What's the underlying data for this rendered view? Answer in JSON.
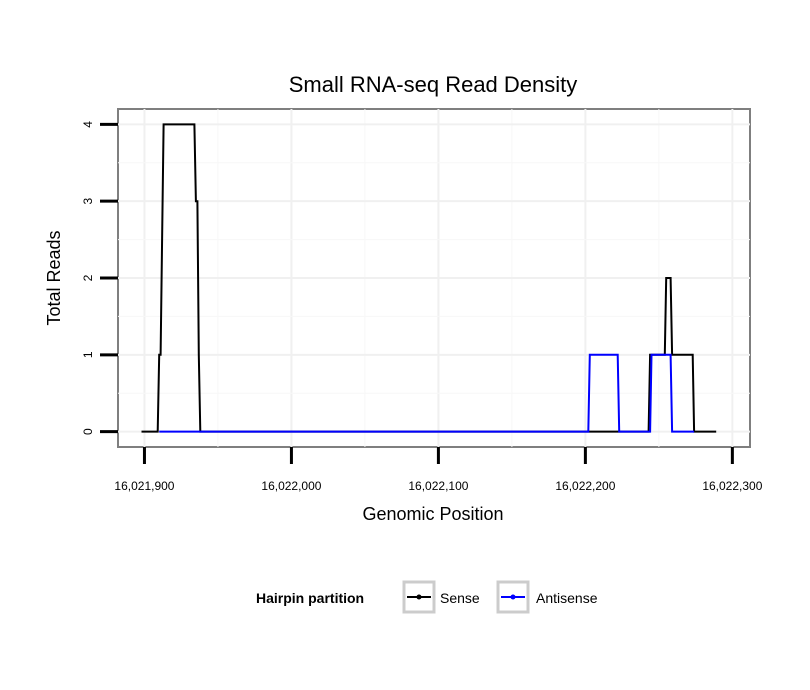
{
  "chart_data": {
    "type": "line",
    "title": "Small RNA-seq Read Density",
    "xlabel": "Genomic Position",
    "ylabel": "Total Reads",
    "xlim": [
      16021882,
      16022312
    ],
    "ylim": [
      -0.2,
      4.2
    ],
    "x_ticks": [
      16021900,
      16022000,
      16022100,
      16022200,
      16022300
    ],
    "x_tick_labels": [
      "16,021,900",
      "16,022,000",
      "16,022,100",
      "16,022,200",
      "16,022,300"
    ],
    "y_ticks": [
      0,
      1,
      2,
      3,
      4
    ],
    "y_tick_labels": [
      "0",
      "1",
      "2",
      "3",
      "4"
    ],
    "grid": true,
    "legend": {
      "title": "Hairpin partition",
      "position": "bottom"
    },
    "series": [
      {
        "name": "Sense",
        "color": "#000000",
        "x": [
          16021898,
          16021909,
          16021910,
          16021911,
          16021913,
          16021934,
          16021935,
          16021936,
          16021937,
          16021938,
          16022243,
          16022244,
          16022254,
          16022255,
          16022258,
          16022259,
          16022273,
          16022274,
          16022289
        ],
        "y": [
          0,
          0,
          1,
          1,
          4,
          4,
          3,
          3,
          1,
          0,
          0,
          1,
          1,
          2,
          2,
          1,
          1,
          0,
          0
        ]
      },
      {
        "name": "Antisense",
        "color": "#0000ff",
        "x": [
          16021910,
          16021939,
          16022202,
          16022203,
          16022222,
          16022223,
          16022244,
          16022245,
          16022258,
          16022259,
          16022274
        ],
        "y": [
          0,
          0,
          0,
          1,
          1,
          0,
          0,
          1,
          1,
          0,
          0
        ]
      }
    ]
  }
}
